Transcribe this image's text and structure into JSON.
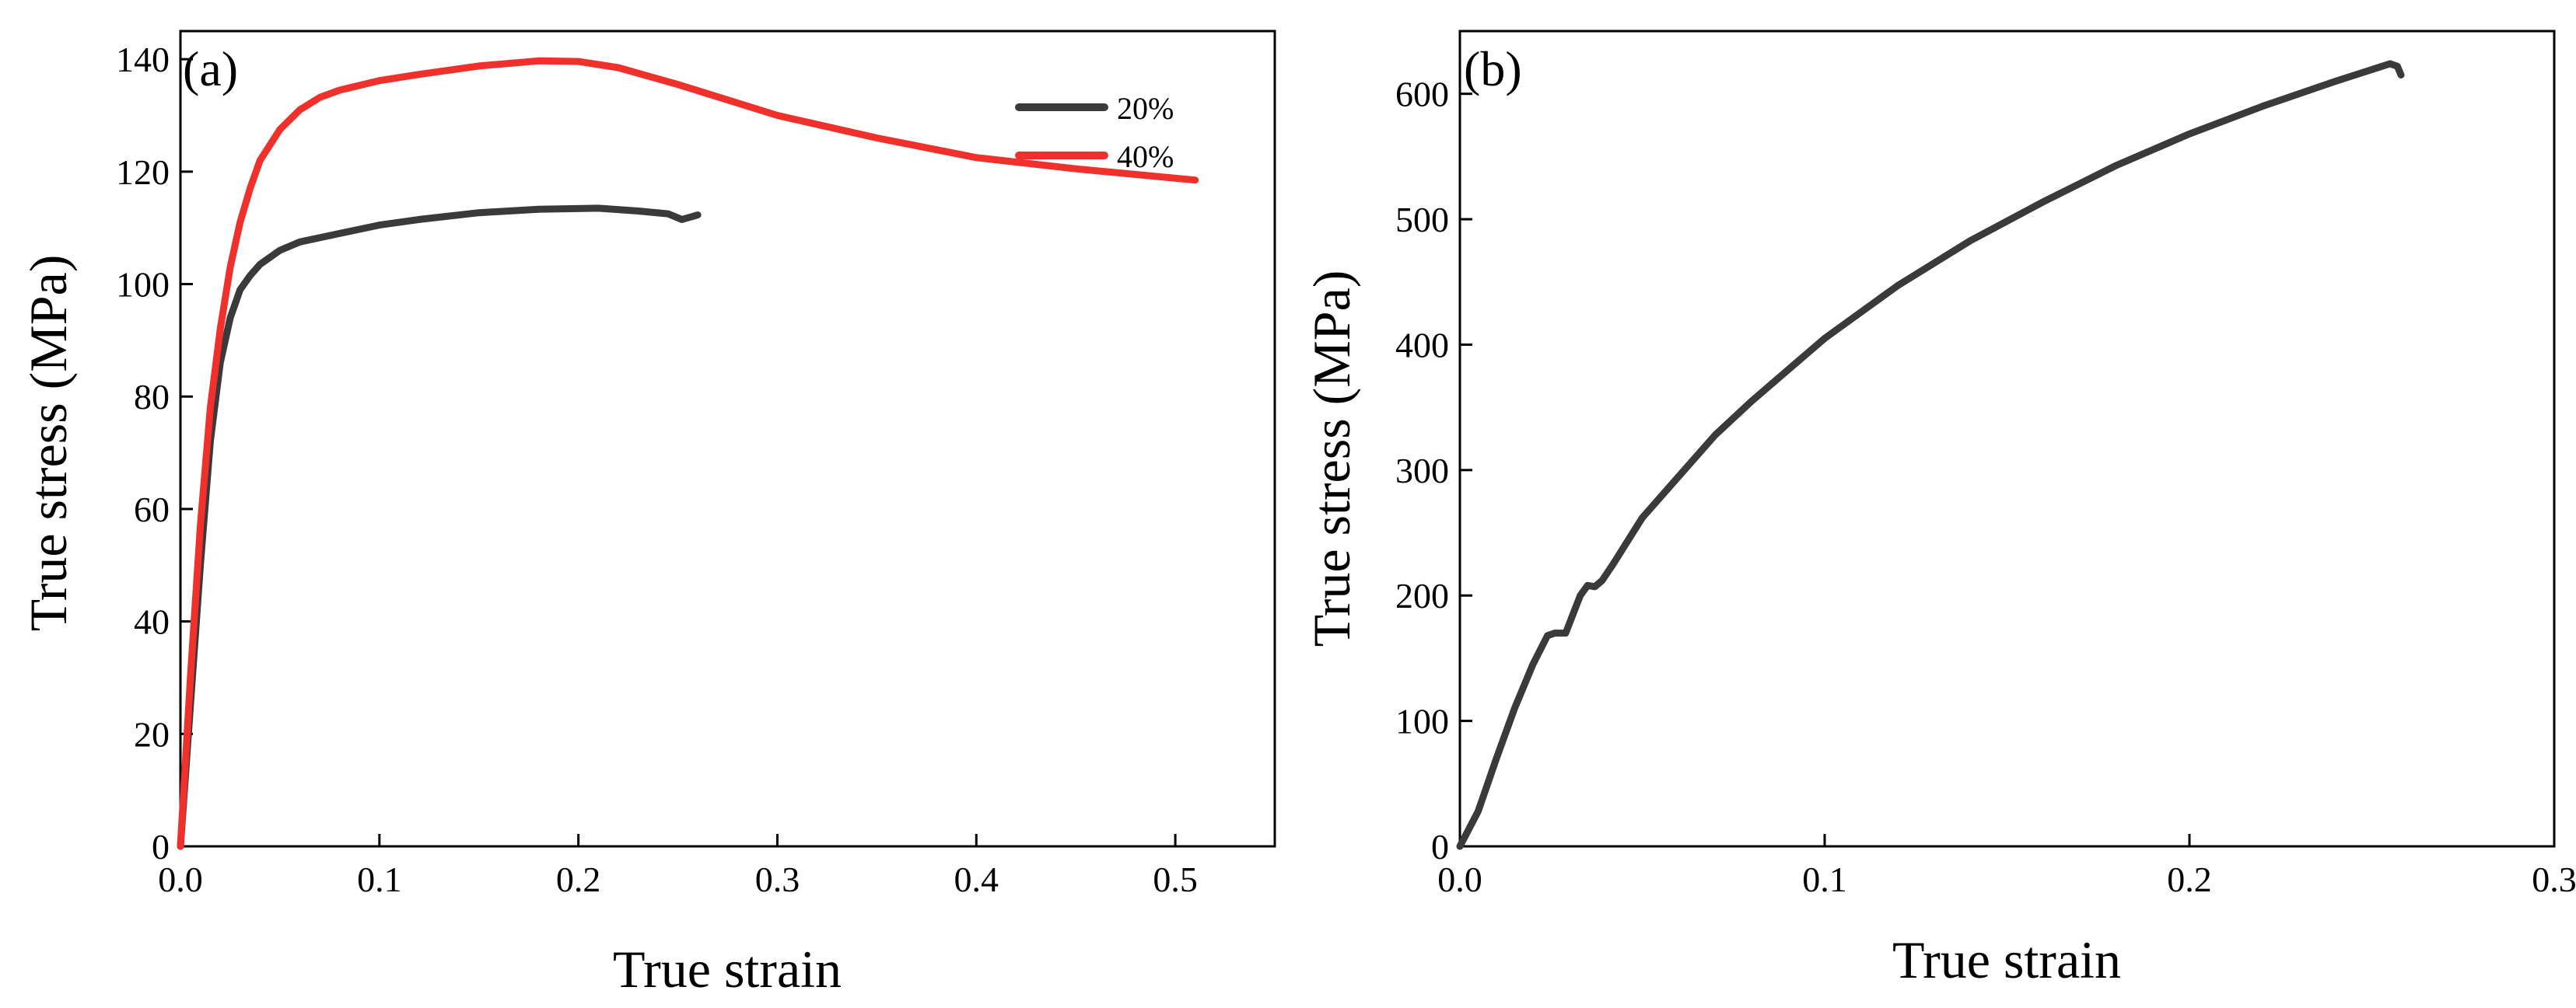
{
  "chart_data": [
    {
      "type": "line",
      "panel_label": "(a)",
      "xlabel": "True strain",
      "ylabel": "True stress (MPa)",
      "xlim": [
        0,
        0.55
      ],
      "ylim": [
        0,
        145
      ],
      "xticks": [
        0.0,
        0.1,
        0.2,
        0.3,
        0.4,
        0.5
      ],
      "xtick_labels": [
        "0.0",
        "0.1",
        "0.2",
        "0.3",
        "0.4",
        "0.5"
      ],
      "yticks": [
        0,
        20,
        40,
        60,
        80,
        100,
        120,
        140
      ],
      "ytick_labels": [
        "0",
        "20",
        "40",
        "60",
        "80",
        "100",
        "120",
        "140"
      ],
      "legend_position": "top-right",
      "series": [
        {
          "name": "20%",
          "color": "#3a3a3a",
          "x": [
            0,
            0.005,
            0.01,
            0.015,
            0.02,
            0.025,
            0.03,
            0.035,
            0.04,
            0.05,
            0.06,
            0.08,
            0.1,
            0.12,
            0.15,
            0.18,
            0.21,
            0.23,
            0.245,
            0.252,
            0.26
          ],
          "y": [
            0,
            25,
            50,
            72,
            86,
            94,
            99,
            101.5,
            103.5,
            106,
            107.5,
            109,
            110.5,
            111.5,
            112.7,
            113.3,
            113.5,
            113,
            112.5,
            111.5,
            112.3
          ]
        },
        {
          "name": "40%",
          "color": "#f0302b",
          "x": [
            0,
            0.005,
            0.01,
            0.015,
            0.02,
            0.025,
            0.03,
            0.035,
            0.04,
            0.05,
            0.06,
            0.07,
            0.08,
            0.1,
            0.12,
            0.15,
            0.18,
            0.2,
            0.22,
            0.25,
            0.3,
            0.35,
            0.4,
            0.45,
            0.51
          ],
          "y": [
            0,
            30,
            57,
            78,
            92,
            103,
            111,
            117,
            122,
            127.5,
            131,
            133.2,
            134.5,
            136.2,
            137.3,
            138.8,
            139.7,
            139.6,
            138.5,
            135.5,
            130,
            126,
            122.5,
            120.5,
            118.5
          ]
        }
      ]
    },
    {
      "type": "line",
      "panel_label": "(b)",
      "xlabel": "True strain",
      "ylabel": "True stress (MPa)",
      "xlim": [
        0,
        0.3
      ],
      "ylim": [
        0,
        650
      ],
      "xticks": [
        0.0,
        0.1,
        0.2,
        0.3
      ],
      "xtick_labels": [
        "0.0",
        "0.1",
        "0.2",
        "0.3"
      ],
      "yticks": [
        0,
        100,
        200,
        300,
        400,
        500,
        600
      ],
      "ytick_labels": [
        "0",
        "100",
        "200",
        "300",
        "400",
        "500",
        "600"
      ],
      "series": [
        {
          "name": "",
          "color": "#3a3a3a",
          "x": [
            0,
            0.005,
            0.01,
            0.015,
            0.02,
            0.024,
            0.026,
            0.029,
            0.031,
            0.033,
            0.035,
            0.037,
            0.039,
            0.042,
            0.05,
            0.06,
            0.07,
            0.08,
            0.09,
            0.1,
            0.12,
            0.14,
            0.16,
            0.18,
            0.2,
            0.22,
            0.24,
            0.255,
            0.257,
            0.258
          ],
          "y": [
            0,
            28,
            70,
            110,
            145,
            168,
            170,
            170,
            185,
            200,
            208,
            207,
            212,
            225,
            262,
            295,
            328,
            355,
            380,
            405,
            447,
            483,
            514,
            543,
            568,
            590,
            610,
            624,
            622,
            615
          ]
        }
      ]
    }
  ]
}
